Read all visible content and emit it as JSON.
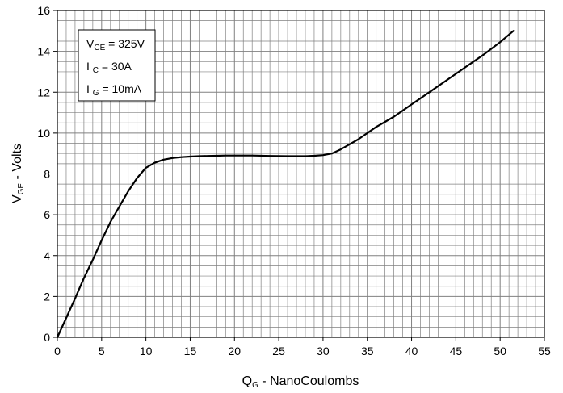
{
  "chart_data": {
    "type": "line",
    "xlabel": {
      "main": "Q",
      "sub": "G",
      "rest": " - NanoCoulombs"
    },
    "ylabel": {
      "main": "V",
      "sub": "GE",
      "rest": " - Volts"
    },
    "xlim": [
      0,
      55
    ],
    "ylim": [
      0,
      16
    ],
    "x_ticks": [
      0,
      5,
      10,
      15,
      20,
      25,
      30,
      35,
      40,
      45,
      50,
      55
    ],
    "y_ticks": [
      0,
      2,
      4,
      6,
      8,
      10,
      12,
      14,
      16
    ],
    "grid": "on (minor every 1 nC / 0.5 V)",
    "legend_position": "top-left",
    "conditions": [
      {
        "main": "V",
        "sub": "CE",
        "rest": " = 325V"
      },
      {
        "main": "I ",
        "sub": "C",
        "rest": " = 30A"
      },
      {
        "main": "I ",
        "sub": "G",
        "rest": " = 10mA"
      }
    ],
    "series": [
      {
        "x": [
          0,
          1,
          2,
          3,
          4,
          5,
          6,
          7,
          8,
          9,
          10,
          11,
          12,
          13,
          14,
          15,
          16,
          17,
          18,
          19,
          20,
          22,
          24,
          26,
          28,
          29,
          30,
          31,
          32,
          33,
          34,
          35,
          36,
          37,
          38,
          40,
          42,
          44,
          46,
          48,
          50,
          51.5
        ],
        "y": [
          0,
          0.95,
          1.9,
          2.9,
          3.8,
          4.75,
          5.65,
          6.4,
          7.15,
          7.8,
          8.3,
          8.55,
          8.7,
          8.78,
          8.82,
          8.85,
          8.87,
          8.88,
          8.89,
          8.9,
          8.9,
          8.9,
          8.88,
          8.87,
          8.87,
          8.89,
          8.92,
          9.0,
          9.2,
          9.45,
          9.7,
          10.0,
          10.3,
          10.55,
          10.8,
          11.4,
          12.0,
          12.6,
          13.2,
          13.8,
          14.45,
          15.0
        ]
      }
    ],
    "line_color": "#000000",
    "grid_color": "#808080"
  }
}
